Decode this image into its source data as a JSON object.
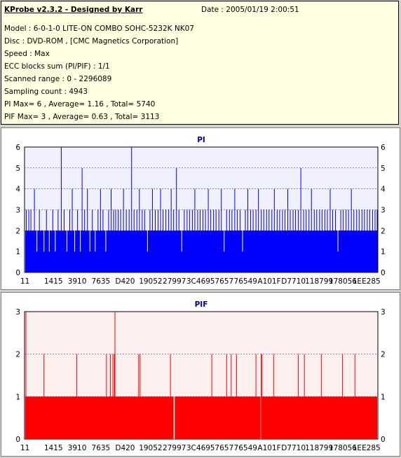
{
  "header": {
    "app_title": "KProbe v2.3.2 - Designed by Karr",
    "date": "Date : 2005/01/19 2:00:51",
    "lines": [
      "Model : 6-0-1-0 LITE-ON COMBO SOHC-5232K NK07",
      "Disc : DVD-ROM ,  [CMC Magnetics Corporation]",
      "Speed : Max",
      "ECC blocks sum (PI/PIF) : 1/1",
      "Scanned range : 0 - 2296089",
      "Sampling count : 4943",
      "PI Max= 6 , Average= 1.16 , Total= 5740",
      "PIF Max= 3 , Average= 0.63 , Total= 3113"
    ]
  },
  "colors": {
    "pi": "#0000ff",
    "pif": "#ff0000",
    "plot_bg_pi": "#f0f0ff",
    "plot_bg_pif": "#fff0f0",
    "title": "#000080"
  },
  "chart_data": [
    {
      "type": "bar",
      "title": "PI",
      "xlabel": "",
      "ylabel": "",
      "ylim": [
        0,
        6
      ],
      "y_ticks": [
        0,
        1,
        2,
        3,
        4,
        5,
        6
      ],
      "x_tick_labels": [
        "11",
        "1415",
        "3910",
        "7635",
        "D420",
        "19052",
        "27997",
        "3C469",
        "57657",
        "76549",
        "A101F",
        "D7710",
        "118799",
        "178056",
        "1EE285"
      ],
      "grid": true,
      "baseline": 2,
      "sample_count": 4943,
      "spikes": [
        {
          "x": 0.005,
          "v": 3
        },
        {
          "x": 0.012,
          "v": 3
        },
        {
          "x": 0.018,
          "v": 3
        },
        {
          "x": 0.028,
          "v": 4
        },
        {
          "x": 0.035,
          "v": 1
        },
        {
          "x": 0.042,
          "v": 3
        },
        {
          "x": 0.055,
          "v": 1
        },
        {
          "x": 0.062,
          "v": 3
        },
        {
          "x": 0.07,
          "v": 1
        },
        {
          "x": 0.08,
          "v": 3
        },
        {
          "x": 0.087,
          "v": 1
        },
        {
          "x": 0.095,
          "v": 3
        },
        {
          "x": 0.104,
          "v": 6
        },
        {
          "x": 0.112,
          "v": 3
        },
        {
          "x": 0.12,
          "v": 1
        },
        {
          "x": 0.128,
          "v": 3
        },
        {
          "x": 0.135,
          "v": 4
        },
        {
          "x": 0.142,
          "v": 1
        },
        {
          "x": 0.15,
          "v": 3
        },
        {
          "x": 0.158,
          "v": 1
        },
        {
          "x": 0.163,
          "v": 5
        },
        {
          "x": 0.17,
          "v": 3
        },
        {
          "x": 0.178,
          "v": 4
        },
        {
          "x": 0.185,
          "v": 1
        },
        {
          "x": 0.192,
          "v": 3
        },
        {
          "x": 0.2,
          "v": 1
        },
        {
          "x": 0.208,
          "v": 3
        },
        {
          "x": 0.215,
          "v": 4
        },
        {
          "x": 0.222,
          "v": 3
        },
        {
          "x": 0.23,
          "v": 1
        },
        {
          "x": 0.238,
          "v": 3
        },
        {
          "x": 0.245,
          "v": 4
        },
        {
          "x": 0.252,
          "v": 3
        },
        {
          "x": 0.258,
          "v": 3
        },
        {
          "x": 0.265,
          "v": 3
        },
        {
          "x": 0.272,
          "v": 3
        },
        {
          "x": 0.28,
          "v": 4
        },
        {
          "x": 0.288,
          "v": 3
        },
        {
          "x": 0.296,
          "v": 3
        },
        {
          "x": 0.303,
          "v": 6
        },
        {
          "x": 0.31,
          "v": 3
        },
        {
          "x": 0.318,
          "v": 3
        },
        {
          "x": 0.325,
          "v": 4
        },
        {
          "x": 0.333,
          "v": 3
        },
        {
          "x": 0.34,
          "v": 3
        },
        {
          "x": 0.348,
          "v": 1
        },
        {
          "x": 0.355,
          "v": 3
        },
        {
          "x": 0.362,
          "v": 4
        },
        {
          "x": 0.37,
          "v": 3
        },
        {
          "x": 0.378,
          "v": 3
        },
        {
          "x": 0.385,
          "v": 4
        },
        {
          "x": 0.392,
          "v": 3
        },
        {
          "x": 0.4,
          "v": 3
        },
        {
          "x": 0.408,
          "v": 3
        },
        {
          "x": 0.415,
          "v": 4
        },
        {
          "x": 0.422,
          "v": 3
        },
        {
          "x": 0.43,
          "v": 5
        },
        {
          "x": 0.437,
          "v": 3
        },
        {
          "x": 0.445,
          "v": 1
        },
        {
          "x": 0.452,
          "v": 3
        },
        {
          "x": 0.46,
          "v": 3
        },
        {
          "x": 0.467,
          "v": 3
        },
        {
          "x": 0.475,
          "v": 3
        },
        {
          "x": 0.482,
          "v": 4
        },
        {
          "x": 0.49,
          "v": 3
        },
        {
          "x": 0.497,
          "v": 3
        },
        {
          "x": 0.505,
          "v": 3
        },
        {
          "x": 0.512,
          "v": 3
        },
        {
          "x": 0.52,
          "v": 4
        },
        {
          "x": 0.527,
          "v": 3
        },
        {
          "x": 0.535,
          "v": 3
        },
        {
          "x": 0.542,
          "v": 3
        },
        {
          "x": 0.55,
          "v": 3
        },
        {
          "x": 0.557,
          "v": 4
        },
        {
          "x": 0.565,
          "v": 1
        },
        {
          "x": 0.572,
          "v": 3
        },
        {
          "x": 0.58,
          "v": 3
        },
        {
          "x": 0.587,
          "v": 3
        },
        {
          "x": 0.595,
          "v": 4
        },
        {
          "x": 0.602,
          "v": 3
        },
        {
          "x": 0.61,
          "v": 3
        },
        {
          "x": 0.617,
          "v": 1
        },
        {
          "x": 0.625,
          "v": 3
        },
        {
          "x": 0.632,
          "v": 4
        },
        {
          "x": 0.64,
          "v": 3
        },
        {
          "x": 0.647,
          "v": 3
        },
        {
          "x": 0.655,
          "v": 3
        },
        {
          "x": 0.662,
          "v": 4
        },
        {
          "x": 0.67,
          "v": 3
        },
        {
          "x": 0.677,
          "v": 3
        },
        {
          "x": 0.685,
          "v": 3
        },
        {
          "x": 0.692,
          "v": 3
        },
        {
          "x": 0.7,
          "v": 3
        },
        {
          "x": 0.707,
          "v": 4
        },
        {
          "x": 0.715,
          "v": 3
        },
        {
          "x": 0.722,
          "v": 3
        },
        {
          "x": 0.73,
          "v": 3
        },
        {
          "x": 0.737,
          "v": 3
        },
        {
          "x": 0.745,
          "v": 4
        },
        {
          "x": 0.752,
          "v": 3
        },
        {
          "x": 0.76,
          "v": 3
        },
        {
          "x": 0.767,
          "v": 3
        },
        {
          "x": 0.775,
          "v": 3
        },
        {
          "x": 0.782,
          "v": 5
        },
        {
          "x": 0.79,
          "v": 3
        },
        {
          "x": 0.797,
          "v": 3
        },
        {
          "x": 0.805,
          "v": 3
        },
        {
          "x": 0.812,
          "v": 4
        },
        {
          "x": 0.82,
          "v": 3
        },
        {
          "x": 0.827,
          "v": 3
        },
        {
          "x": 0.835,
          "v": 3
        },
        {
          "x": 0.842,
          "v": 3
        },
        {
          "x": 0.85,
          "v": 3
        },
        {
          "x": 0.857,
          "v": 3
        },
        {
          "x": 0.865,
          "v": 4
        },
        {
          "x": 0.872,
          "v": 3
        },
        {
          "x": 0.88,
          "v": 3
        },
        {
          "x": 0.887,
          "v": 1
        },
        {
          "x": 0.895,
          "v": 3
        },
        {
          "x": 0.902,
          "v": 3
        },
        {
          "x": 0.91,
          "v": 3
        },
        {
          "x": 0.917,
          "v": 3
        },
        {
          "x": 0.925,
          "v": 4
        },
        {
          "x": 0.932,
          "v": 3
        },
        {
          "x": 0.94,
          "v": 3
        },
        {
          "x": 0.947,
          "v": 3
        },
        {
          "x": 0.955,
          "v": 3
        },
        {
          "x": 0.962,
          "v": 3
        },
        {
          "x": 0.97,
          "v": 3
        },
        {
          "x": 0.977,
          "v": 3
        },
        {
          "x": 0.985,
          "v": 3
        },
        {
          "x": 0.992,
          "v": 3
        },
        {
          "x": 0.998,
          "v": 3
        }
      ]
    },
    {
      "type": "bar",
      "title": "PIF",
      "xlabel": "",
      "ylabel": "",
      "ylim": [
        0,
        3
      ],
      "y_ticks": [
        0,
        1,
        2,
        3
      ],
      "x_tick_labels": [
        "11",
        "1415",
        "3910",
        "7635",
        "D420",
        "19052",
        "27997",
        "3C469",
        "57657",
        "76549",
        "A101F",
        "D7710",
        "118799",
        "178056",
        "1EE285"
      ],
      "grid": true,
      "baseline": 1,
      "sample_count": 4943,
      "spikes": [
        {
          "x": 0.004,
          "v": 3
        },
        {
          "x": 0.055,
          "v": 2
        },
        {
          "x": 0.148,
          "v": 2
        },
        {
          "x": 0.232,
          "v": 2
        },
        {
          "x": 0.243,
          "v": 2
        },
        {
          "x": 0.25,
          "v": 2
        },
        {
          "x": 0.254,
          "v": 2
        },
        {
          "x": 0.256,
          "v": 3
        },
        {
          "x": 0.323,
          "v": 2
        },
        {
          "x": 0.327,
          "v": 2
        },
        {
          "x": 0.413,
          "v": 2
        },
        {
          "x": 0.53,
          "v": 2
        },
        {
          "x": 0.572,
          "v": 2
        },
        {
          "x": 0.585,
          "v": 2
        },
        {
          "x": 0.6,
          "v": 2
        },
        {
          "x": 0.655,
          "v": 2
        },
        {
          "x": 0.67,
          "v": 2
        },
        {
          "x": 0.672,
          "v": 2
        },
        {
          "x": 0.705,
          "v": 2
        },
        {
          "x": 0.775,
          "v": 2
        },
        {
          "x": 0.792,
          "v": 2
        },
        {
          "x": 0.84,
          "v": 2
        },
        {
          "x": 0.9,
          "v": 2
        },
        {
          "x": 0.935,
          "v": 2
        }
      ],
      "gaps": [
        0.422,
        0.668
      ]
    }
  ]
}
